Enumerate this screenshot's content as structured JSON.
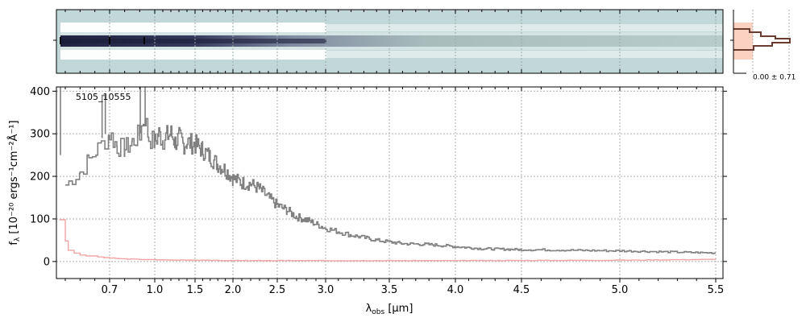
{
  "chart_data": {
    "type": "line",
    "annotation": "5105_10555",
    "xlabel_main": "λ",
    "xlabel_sub": "obs",
    "xlabel_unit": " [μm]",
    "ylabel_main": "f",
    "ylabel_sub": "λ",
    "ylabel_unit": " [10⁻²⁰ ergs⁻¹cm⁻²Å⁻¹]",
    "yticks": [
      0,
      100,
      200,
      300,
      400
    ],
    "xticks": [
      "0.7",
      "1.0",
      "1.5",
      "2.0",
      "2.5",
      "3.0",
      "3.5",
      "4.0",
      "4.5",
      "5.0",
      "5.5"
    ],
    "xtick_um": [
      0.7,
      1.0,
      1.5,
      2.0,
      2.5,
      3.0,
      3.5,
      4.0,
      4.5,
      5.0,
      5.5
    ],
    "ylim": [
      -40,
      410
    ],
    "xlim": [
      0.52,
      5.53
    ],
    "grid": true,
    "inset_label": "0.00 ± 0.71",
    "colors": {
      "flux": "#808080",
      "error": "#f2a6a6",
      "panel_bg": "#c2d7d7",
      "trace": "#2d3050",
      "profile": "#6b3a30",
      "profile_fill": "#fbd1c2"
    },
    "series": [
      {
        "name": "flux",
        "x": [
          0.55,
          0.6,
          0.63,
          0.66,
          0.7,
          0.75,
          0.8,
          0.85,
          0.9,
          0.93,
          0.96,
          1.0,
          1.05,
          1.1,
          1.15,
          1.2,
          1.25,
          1.3,
          1.35,
          1.4,
          1.5,
          1.6,
          1.7,
          1.8,
          1.9,
          2.0,
          2.1,
          2.2,
          2.3,
          2.4,
          2.5,
          2.6,
          2.7,
          2.8,
          3.0,
          3.2,
          3.4,
          3.6,
          3.8,
          4.0,
          4.2,
          4.5,
          5.0,
          5.5
        ],
        "y": [
          180,
          210,
          240,
          265,
          300,
          270,
          265,
          280,
          300,
          340,
          290,
          280,
          300,
          285,
          295,
          300,
          280,
          290,
          275,
          280,
          275,
          262,
          245,
          228,
          215,
          195,
          185,
          182,
          170,
          150,
          132,
          120,
          105,
          98,
          78,
          62,
          50,
          42,
          40,
          35,
          30,
          28,
          25,
          20
        ]
      },
      {
        "name": "error",
        "x": [
          0.53,
          0.56,
          0.6,
          0.7,
          0.8,
          1.0,
          1.5,
          2.0,
          3.0,
          4.0,
          5.0,
          5.5
        ],
        "y": [
          100,
          25,
          15,
          8,
          6,
          4,
          3,
          2,
          2,
          2,
          3,
          5
        ]
      }
    ]
  }
}
